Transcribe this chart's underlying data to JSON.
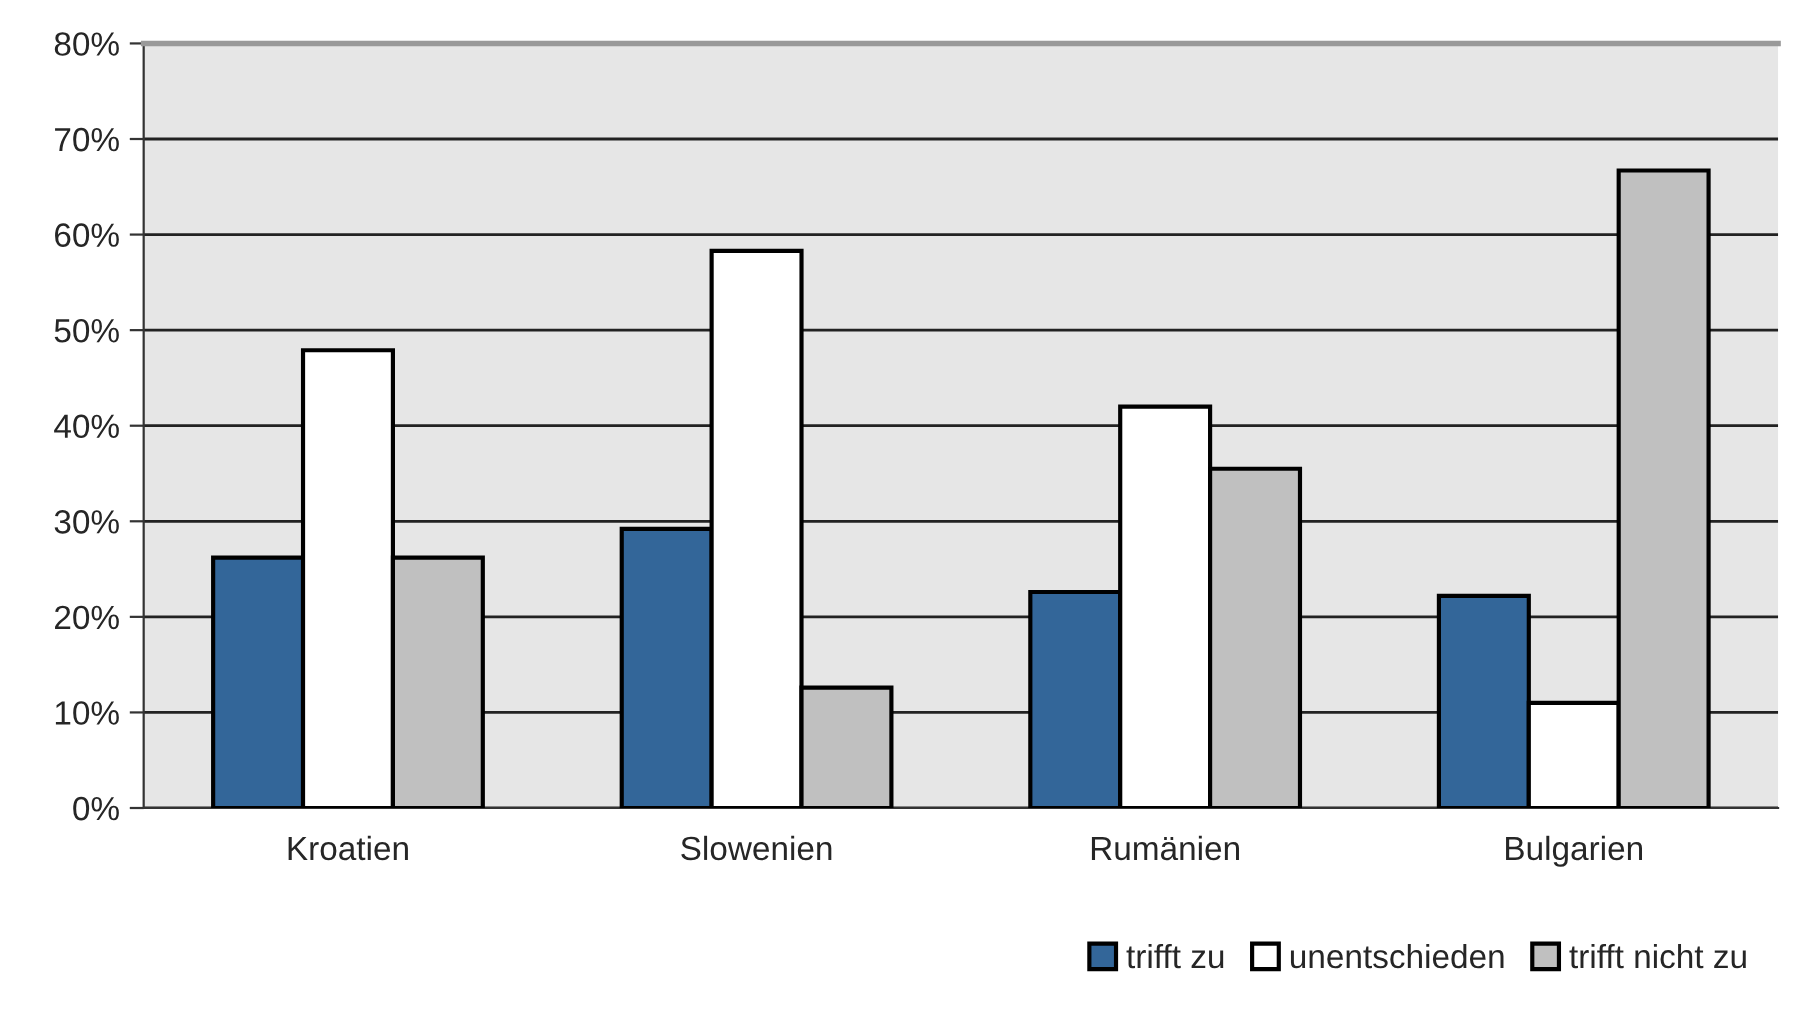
{
  "chart_data": {
    "type": "bar",
    "categories": [
      "Kroatien",
      "Slowenien",
      "Rumänien",
      "Bulgarien"
    ],
    "series": [
      {
        "name": "trifft zu",
        "color": "#336699",
        "values": [
          26.2,
          29.2,
          22.6,
          22.2
        ]
      },
      {
        "name": "unentschieden",
        "color": "#ffffff",
        "values": [
          47.9,
          58.3,
          42.0,
          11.0
        ]
      },
      {
        "name": "trifft nicht zu",
        "color": "#c0c0c0",
        "values": [
          26.2,
          12.6,
          35.5,
          66.7
        ]
      }
    ],
    "ylim": [
      0,
      80
    ],
    "yticks": [
      {
        "value": 0,
        "label": "0%"
      },
      {
        "value": 10,
        "label": "10%"
      },
      {
        "value": 20,
        "label": "20%"
      },
      {
        "value": 30,
        "label": "30%"
      },
      {
        "value": 40,
        "label": "40%"
      },
      {
        "value": 50,
        "label": "50%"
      },
      {
        "value": 60,
        "label": "60%"
      },
      {
        "value": 70,
        "label": "70%"
      },
      {
        "value": 80,
        "label": "80%"
      }
    ],
    "grid": "y",
    "legend": "bottom right"
  }
}
